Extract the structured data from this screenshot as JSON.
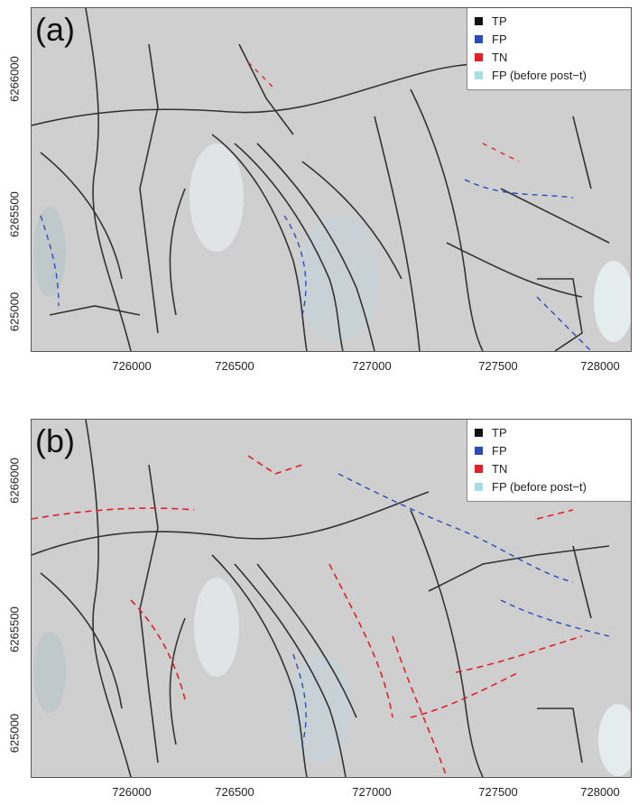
{
  "panels": [
    {
      "id": "a",
      "label": "(a)"
    },
    {
      "id": "b",
      "label": "(b)"
    }
  ],
  "legend": [
    {
      "label": "TP",
      "color": "#111111"
    },
    {
      "label": "FP",
      "color": "#2b4cb8"
    },
    {
      "label": "TN",
      "color": "#e0202a"
    },
    {
      "label": "FP (before post−t)",
      "color": "#a9dde6"
    }
  ],
  "x_ticks": [
    "726000",
    "726500",
    "727000",
    "727500",
    "728000"
  ],
  "y_ticks": [
    "6266000",
    "6265500",
    "625000"
  ],
  "colors": {
    "background": "#cfcfcf",
    "tp": "#111111",
    "fp": "#2b4cb8",
    "tn": "#e0202a",
    "fp_before": "#a9dde6"
  }
}
